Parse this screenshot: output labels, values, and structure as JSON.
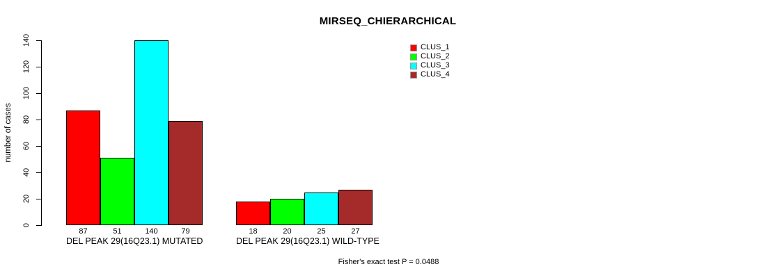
{
  "title": "MIRSEQ_CHIERARCHICAL",
  "footer": "Fisher's exact test P = 0.0488",
  "chart_data": {
    "type": "bar",
    "title": "MIRSEQ_CHIERARCHICAL",
    "ylabel": "number of cases",
    "xlabel": "",
    "ylim": [
      0,
      140
    ],
    "yticks": [
      0,
      20,
      40,
      60,
      80,
      100,
      120,
      140
    ],
    "grid": false,
    "legend_position": "top-right",
    "series": [
      "CLUS_1",
      "CLUS_2",
      "CLUS_3",
      "CLUS_4"
    ],
    "colors": [
      "#FF0000",
      "#00FF00",
      "#00FFFF",
      "#A52A2A"
    ],
    "groups": [
      {
        "label": "DEL PEAK 29(16Q23.1) MUTATED",
        "values": [
          87,
          51,
          140,
          79
        ]
      },
      {
        "label": "DEL PEAK 29(16Q23.1) WILD-TYPE",
        "values": [
          18,
          20,
          25,
          27
        ]
      }
    ],
    "annotation": "Fisher's exact test P = 0.0488"
  }
}
